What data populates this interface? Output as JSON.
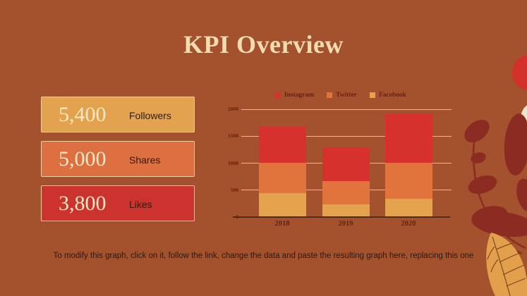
{
  "slide": {
    "title": "KPI Overview",
    "caption": "To modify this graph, click on it, follow the link, change the data and paste the resulting graph here, replacing this one"
  },
  "colors": {
    "background": "#A3522D",
    "title_text": "#F3DCB2",
    "number_text": "#F8E9C6",
    "label_text": "#2E1E14",
    "caption_text": "#2A1A10",
    "card_border": "#EDCFA0",
    "grid_line": "#EBD9BB",
    "axis_line": "#4F2C18",
    "tick_text": "#602413",
    "legend_text": "#6B2013",
    "decor_maroon": "#8C2B22",
    "decor_amber": "#E2A04C",
    "decor_red": "#D2302B",
    "decor_cream": "#EFE3CD",
    "decor_vein": "#7C4A1D"
  },
  "stats": [
    {
      "value": "5,400",
      "label": "Followers",
      "bg": "#E2A24E"
    },
    {
      "value": "5,000",
      "label": "Shares",
      "bg": "#DD6F41"
    },
    {
      "value": "3,800",
      "label": "Likes",
      "bg": "#CC332E"
    }
  ],
  "chart_data": {
    "type": "bar",
    "stacked": true,
    "title": "",
    "xlabel": "",
    "ylabel": "",
    "categories": [
      "2018",
      "2019",
      "2020"
    ],
    "series": [
      {
        "name": "Instagram",
        "color": "#D7312E",
        "values": [
          670,
          635,
          905
        ]
      },
      {
        "name": "Twitter",
        "color": "#E1743C",
        "values": [
          560,
          435,
          670
        ]
      },
      {
        "name": "Facebook",
        "color": "#E6A34D",
        "values": [
          450,
          230,
          340
        ]
      }
    ],
    "stack_order_bottom_to_top": [
      "Facebook",
      "Twitter",
      "Instagram"
    ],
    "totals": [
      1680,
      1300,
      1915
    ],
    "ylim": [
      0,
      2000
    ],
    "yticks": [
      0,
      500,
      1000,
      1500,
      2000
    ],
    "grid": true,
    "legend_position": "top"
  },
  "decor_items": [
    "red-berry",
    "cream-leaf",
    "maroon-branch-leaves",
    "amber-autumn-leaf"
  ]
}
